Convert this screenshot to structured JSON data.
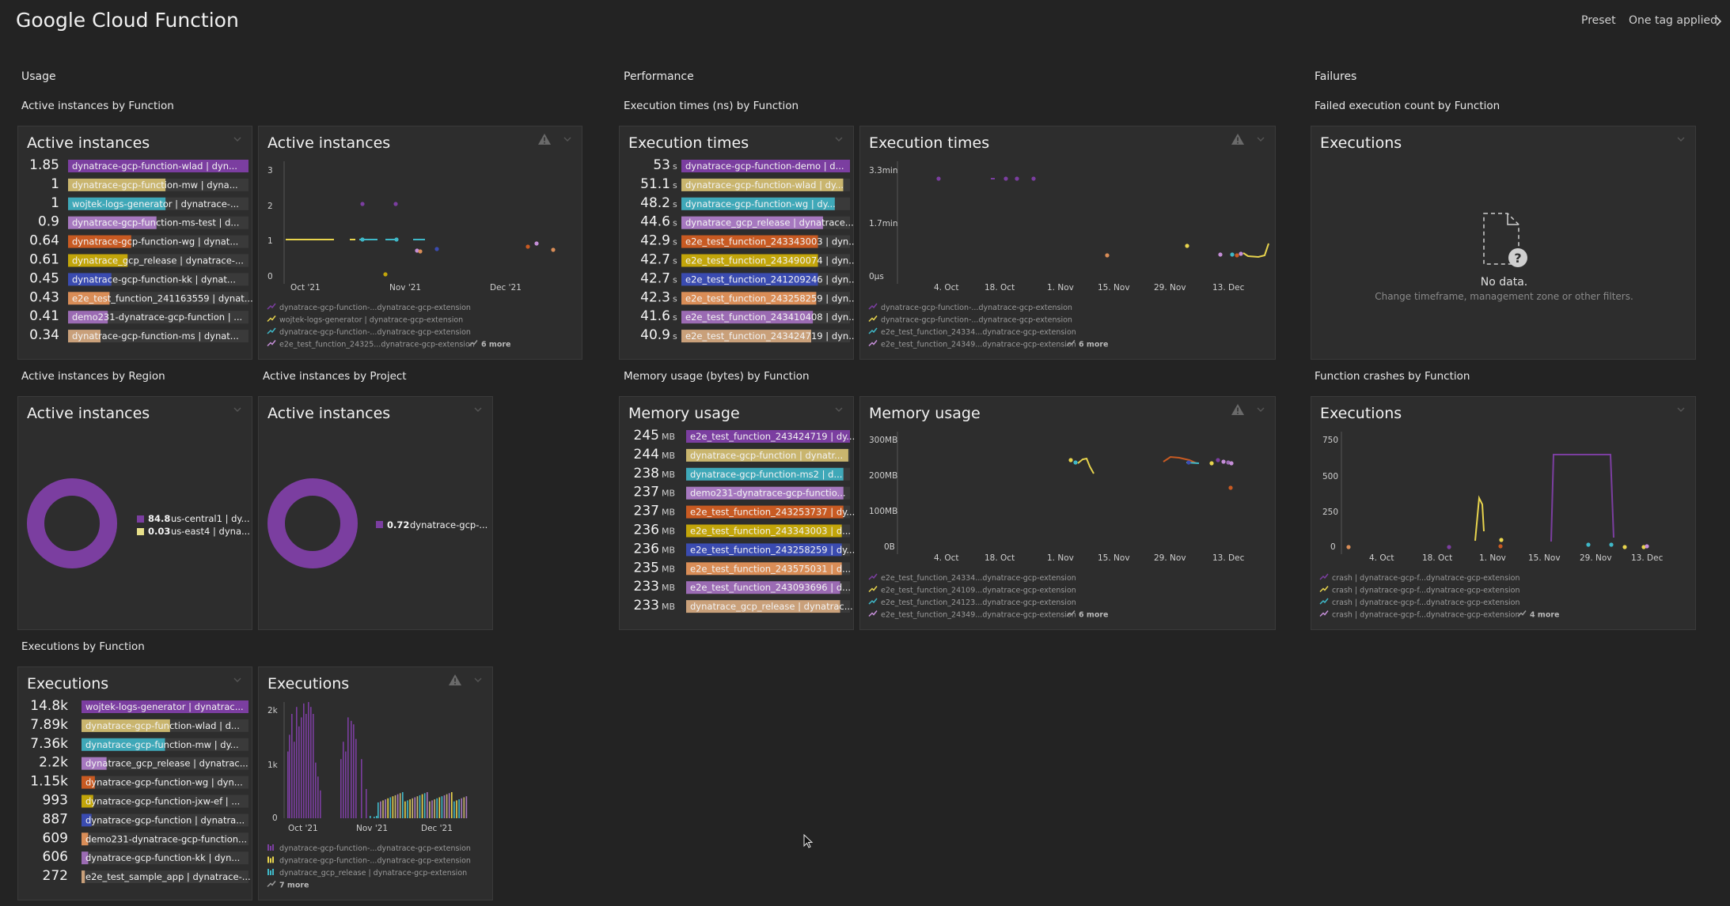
{
  "topbar": {
    "title": "Google Cloud Function",
    "preset_label": "Preset",
    "tags_label": "One tag applied"
  },
  "sections": {
    "usage": "Usage",
    "performance": "Performance",
    "failures": "Failures"
  },
  "headings": {
    "active_by_function": "Active instances by Function",
    "exec_times_by_function": "Execution times (ns) by Function",
    "failed_count_by_function": "Failed execution count by Function",
    "active_by_region": "Active instances by Region",
    "active_by_project": "Active instances by Project",
    "memory_by_function": "Memory usage (bytes) by Function",
    "crashes_by_function": "Function crashes by Function",
    "executions_by_function": "Executions by Function"
  },
  "tiles": {
    "active_top": {
      "title": "Active instances",
      "rows": [
        {
          "value": "1.85",
          "unit": "",
          "label": "dynatrace-gcp-function-wlad | dyn...",
          "color": "#7b3ea0",
          "fill": 1.0
        },
        {
          "value": "1",
          "unit": "",
          "label": "dynatrace-gcp-function-mw | dyna...",
          "color": "#c9b56e",
          "fill": 0.54
        },
        {
          "value": "1",
          "unit": "",
          "label": "wojtek-logs-generator | dynatrace-...",
          "color": "#3fa8b8",
          "fill": 0.54
        },
        {
          "value": "0.9",
          "unit": "",
          "label": "dynatrace-gcp-function-ms-test | d...",
          "color": "#a678bf",
          "fill": 0.49
        },
        {
          "value": "0.64",
          "unit": "",
          "label": "dynatrace-gcp-function-wg | dynat...",
          "color": "#c85a22",
          "fill": 0.35
        },
        {
          "value": "0.61",
          "unit": "",
          "label": "dynatrace_gcp_release | dynatrace-...",
          "color": "#c2a50a",
          "fill": 0.33
        },
        {
          "value": "0.45",
          "unit": "",
          "label": "dynatrace-gcp-function-kk | dynat...",
          "color": "#3a4bb0",
          "fill": 0.24
        },
        {
          "value": "0.43",
          "unit": "",
          "label": "e2e_test_function_241163559 | dynat...",
          "color": "#d98d57",
          "fill": 0.23
        },
        {
          "value": "0.41",
          "unit": "",
          "label": "demo231-dynatrace-gcp-function | ...",
          "color": "#9b6bb3",
          "fill": 0.22
        },
        {
          "value": "0.34",
          "unit": "",
          "label": "dynatrace-gcp-function-ms | dynat...",
          "color": "#c9a07a",
          "fill": 0.18
        }
      ]
    },
    "active_chart": {
      "title": "Active instances",
      "y_ticks": [
        "3",
        "2",
        "1",
        "0"
      ],
      "x_ticks": [
        "Oct '21",
        "Nov '21",
        "Dec '21"
      ],
      "legend": [
        {
          "label": "dynatrace-gcp-function-...dynatrace-gcp-extension",
          "color": "#7b3ea0"
        },
        {
          "label": "wojtek-logs-generator | dynatrace-gcp-extension",
          "color": "#e8d44d"
        },
        {
          "label": "dynatrace-gcp-function-...dynatrace-gcp-extension",
          "color": "#3fb8c8"
        },
        {
          "label": "e2e_test_function_24325...dynatrace-gcp-extension",
          "color": "#c58ed8"
        }
      ],
      "more": "6 more"
    },
    "exec_top": {
      "title": "Execution times",
      "rows": [
        {
          "value": "53",
          "unit": "s",
          "label": "dynatrace-gcp-function-demo | d...",
          "color": "#7b3ea0",
          "fill": 1.0
        },
        {
          "value": "51.1",
          "unit": "s",
          "label": "dynatrace-gcp-function-wlad | dy...",
          "color": "#c9b56e",
          "fill": 0.96
        },
        {
          "value": "48.2",
          "unit": "s",
          "label": "dynatrace-gcp-function-wg | dy...",
          "color": "#3fa8b8",
          "fill": 0.91
        },
        {
          "value": "44.6",
          "unit": "s",
          "label": "dynatrace_gcp_release | dynatrace...",
          "color": "#a678bf",
          "fill": 0.84
        },
        {
          "value": "42.9",
          "unit": "s",
          "label": "e2e_test_function_243343003 | dyn...",
          "color": "#c85a22",
          "fill": 0.81
        },
        {
          "value": "42.7",
          "unit": "s",
          "label": "e2e_test_function_243490074 | dyn...",
          "color": "#c2a50a",
          "fill": 0.81
        },
        {
          "value": "42.7",
          "unit": "s",
          "label": "e2e_test_function_241209246 | dyn...",
          "color": "#3a4bb0",
          "fill": 0.81
        },
        {
          "value": "42.3",
          "unit": "s",
          "label": "e2e_test_function_243258259 | dyn...",
          "color": "#d98d57",
          "fill": 0.8
        },
        {
          "value": "41.6",
          "unit": "s",
          "label": "e2e_test_function_243410408 | dyn...",
          "color": "#9b6bb3",
          "fill": 0.78
        },
        {
          "value": "40.9",
          "unit": "s",
          "label": "e2e_test_function_243424719 | dyn...",
          "color": "#c9a07a",
          "fill": 0.77
        }
      ]
    },
    "exec_chart": {
      "title": "Execution times",
      "y_ticks": [
        "3.3min",
        "1.7min",
        "0µs"
      ],
      "x_ticks": [
        "4. Oct",
        "18. Oct",
        "1. Nov",
        "15. Nov",
        "29. Nov",
        "13. Dec"
      ],
      "legend": [
        {
          "label": "dynatrace-gcp-function-...dynatrace-gcp-extension",
          "color": "#7b3ea0"
        },
        {
          "label": "dynatrace-gcp-function-...dynatrace-gcp-extension",
          "color": "#e8d44d"
        },
        {
          "label": "e2e_test_function_24334...dynatrace-gcp-extension",
          "color": "#3fb8c8"
        },
        {
          "label": "e2e_test_function_24349...dynatrace-gcp-extension",
          "color": "#c58ed8"
        }
      ],
      "more": "6 more"
    },
    "failed": {
      "title": "Executions",
      "no_data": "No data.",
      "hint": "Change timeframe, management zone or other filters."
    },
    "region": {
      "title": "Active instances",
      "legend": [
        {
          "value": "84.8",
          "label": "us-central1 | dy...",
          "color": "#7b3ea0"
        },
        {
          "value": "0.03",
          "label": "us-east4 | dyna...",
          "color": "#e8e08a"
        }
      ]
    },
    "project": {
      "title": "Active instances",
      "legend": [
        {
          "value": "0.72",
          "label": "dynatrace-gcp-...",
          "color": "#7b3ea0"
        }
      ]
    },
    "memory_top": {
      "title": "Memory usage",
      "rows": [
        {
          "value": "245",
          "unit": "MB",
          "label": "e2e_test_function_243424719 | dy...",
          "color": "#7b3ea0",
          "fill": 1.0
        },
        {
          "value": "244",
          "unit": "MB",
          "label": "dynatrace-gcp-function | dynatr...",
          "color": "#c9b56e",
          "fill": 0.99
        },
        {
          "value": "238",
          "unit": "MB",
          "label": "dynatrace-gcp-function-ms2 | d...",
          "color": "#3fa8b8",
          "fill": 0.96
        },
        {
          "value": "237",
          "unit": "MB",
          "label": "demo231-dynatrace-gcp-functio...",
          "color": "#a678bf",
          "fill": 0.96
        },
        {
          "value": "237",
          "unit": "MB",
          "label": "e2e_test_function_243253737 | dy...",
          "color": "#c85a22",
          "fill": 0.96
        },
        {
          "value": "236",
          "unit": "MB",
          "label": "e2e_test_function_243343003 | d...",
          "color": "#c2a50a",
          "fill": 0.95
        },
        {
          "value": "236",
          "unit": "MB",
          "label": "e2e_test_function_243258259 | dy...",
          "color": "#3a4bb0",
          "fill": 0.95
        },
        {
          "value": "235",
          "unit": "MB",
          "label": "e2e_test_function_243575031 | d...",
          "color": "#d98d57",
          "fill": 0.95
        },
        {
          "value": "233",
          "unit": "MB",
          "label": "e2e_test_function_243093696 | d...",
          "color": "#9b6bb3",
          "fill": 0.94
        },
        {
          "value": "233",
          "unit": "MB",
          "label": "dynatrace_gcp_release | dynatrac...",
          "color": "#c9a07a",
          "fill": 0.94
        }
      ]
    },
    "memory_chart": {
      "title": "Memory usage",
      "y_ticks": [
        "300MB",
        "200MB",
        "100MB",
        "0B"
      ],
      "x_ticks": [
        "4. Oct",
        "18. Oct",
        "1. Nov",
        "15. Nov",
        "29. Nov",
        "13. Dec"
      ],
      "legend": [
        {
          "label": "e2e_test_function_24334...dynatrace-gcp-extension",
          "color": "#7b3ea0"
        },
        {
          "label": "e2e_test_function_24109...dynatrace-gcp-extension",
          "color": "#e8d44d"
        },
        {
          "label": "e2e_test_function_24123...dynatrace-gcp-extension",
          "color": "#3fb8c8"
        },
        {
          "label": "e2e_test_function_24349...dynatrace-gcp-extension",
          "color": "#c58ed8"
        }
      ],
      "more": "6 more"
    },
    "crashes": {
      "title": "Executions",
      "y_ticks": [
        "750",
        "500",
        "250",
        "0"
      ],
      "x_ticks": [
        "4. Oct",
        "18. Oct",
        "1. Nov",
        "15. Nov",
        "29. Nov",
        "13. Dec"
      ],
      "legend": [
        {
          "label": "crash | dynatrace-gcp-f...dynatrace-gcp-extension",
          "color": "#7b3ea0"
        },
        {
          "label": "crash | dynatrace-gcp-f...dynatrace-gcp-extension",
          "color": "#e8d44d"
        },
        {
          "label": "crash | dynatrace-gcp-f...dynatrace-gcp-extension",
          "color": "#3fb8c8"
        },
        {
          "label": "crash | dynatrace-gcp-f...dynatrace-gcp-extension",
          "color": "#c58ed8"
        }
      ],
      "more": "4 more"
    },
    "executions_top": {
      "title": "Executions",
      "rows": [
        {
          "value": "14.8k",
          "unit": "",
          "label": "wojtek-logs-generator | dynatrac...",
          "color": "#7b3ea0",
          "fill": 1.0
        },
        {
          "value": "7.89k",
          "unit": "",
          "label": "dynatrace-gcp-function-wlad | d...",
          "color": "#c9b56e",
          "fill": 0.53
        },
        {
          "value": "7.36k",
          "unit": "",
          "label": "dynatrace-gcp-function-mw | dy...",
          "color": "#3fa8b8",
          "fill": 0.5
        },
        {
          "value": "2.2k",
          "unit": "",
          "label": "dynatrace_gcp_release | dynatrac...",
          "color": "#a678bf",
          "fill": 0.15
        },
        {
          "value": "1.15k",
          "unit": "",
          "label": "dynatrace-gcp-function-wg | dyn...",
          "color": "#c85a22",
          "fill": 0.08
        },
        {
          "value": "993",
          "unit": "",
          "label": "dynatrace-gcp-function-jxw-ef | ...",
          "color": "#c2a50a",
          "fill": 0.07
        },
        {
          "value": "887",
          "unit": "",
          "label": "dynatrace-gcp-function | dynatra...",
          "color": "#3a4bb0",
          "fill": 0.06
        },
        {
          "value": "609",
          "unit": "",
          "label": "demo231-dynatrace-gcp-function...",
          "color": "#d98d57",
          "fill": 0.04
        },
        {
          "value": "606",
          "unit": "",
          "label": "dynatrace-gcp-function-kk | dyn...",
          "color": "#9b6bb3",
          "fill": 0.04
        },
        {
          "value": "272",
          "unit": "",
          "label": "e2e_test_sample_app | dynatrace-...",
          "color": "#c9a07a",
          "fill": 0.02
        }
      ]
    },
    "executions_chart": {
      "title": "Executions",
      "y_ticks": [
        "2k",
        "1k",
        "0"
      ],
      "x_ticks": [
        "Oct '21",
        "Nov '21",
        "Dec '21"
      ],
      "legend": [
        {
          "label": "dynatrace-gcp-function-...dynatrace-gcp-extension",
          "color": "#7b3ea0"
        },
        {
          "label": "dynatrace-gcp-function-...dynatrace-gcp-extension",
          "color": "#e8d44d"
        },
        {
          "label": "dynatrace_gcp_release | dynatrace-gcp-extension",
          "color": "#3fb8c8"
        }
      ],
      "more": "7 more"
    }
  }
}
